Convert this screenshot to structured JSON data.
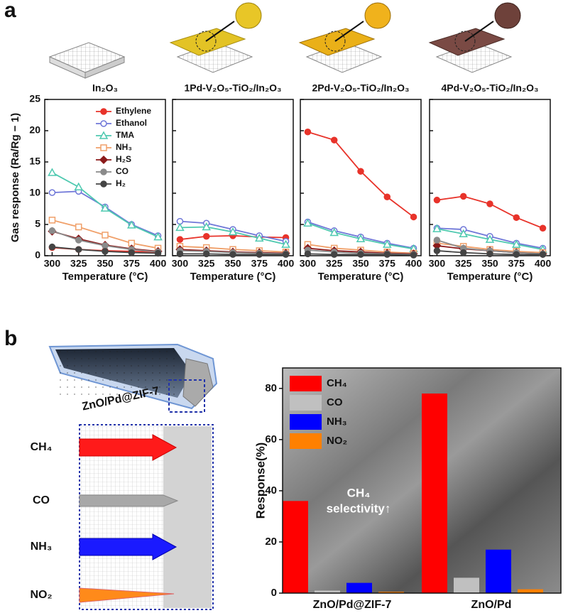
{
  "panels": {
    "a": "a",
    "b": "b"
  },
  "illustration": {
    "label": "ZnO/Pd@ZIF-7",
    "gases": [
      "CH₄",
      "CO",
      "NH₃",
      "NO₂"
    ]
  },
  "chart_data": [
    {
      "type": "line",
      "title": "In₂O₃",
      "ylabel": "Gas response (Ra/Rg − 1)",
      "xlabel": "Temperature (°C)",
      "x": [
        300,
        325,
        350,
        375,
        400
      ],
      "xlim": [
        293,
        407
      ],
      "xticks": [
        300,
        325,
        350,
        375,
        400
      ],
      "ylim": [
        0,
        25
      ],
      "yticks": [
        0,
        5,
        10,
        15,
        20,
        25
      ],
      "legend": "upper right",
      "series": [
        {
          "name": "Ethylene",
          "color": "#e8332a",
          "marker": "circle-filled",
          "values": [
            1.3,
            1.0,
            0.8,
            0.7,
            0.6
          ]
        },
        {
          "name": "Ethanol",
          "color": "#6f77d8",
          "marker": "circle-open",
          "values": [
            10.1,
            10.3,
            7.8,
            5.0,
            3.2
          ]
        },
        {
          "name": "TMA",
          "color": "#4fc9b0",
          "marker": "triangle-open",
          "values": [
            13.3,
            11.0,
            7.6,
            4.9,
            3.0
          ]
        },
        {
          "name": "NH₃",
          "color": "#f0a06a",
          "marker": "square-open",
          "values": [
            5.7,
            4.6,
            3.3,
            2.0,
            1.2
          ]
        },
        {
          "name": "H₂S",
          "color": "#8b1a1a",
          "marker": "diamond-filled",
          "values": [
            3.9,
            2.7,
            1.7,
            1.1,
            0.7
          ]
        },
        {
          "name": "CO",
          "color": "#8a8a8a",
          "marker": "circle-filled",
          "values": [
            4.0,
            2.5,
            1.6,
            1.0,
            0.6
          ]
        },
        {
          "name": "H₂",
          "color": "#444444",
          "marker": "circle-filled",
          "values": [
            1.4,
            1.0,
            0.7,
            0.5,
            0.4
          ]
        }
      ]
    },
    {
      "type": "line",
      "title": "1Pd-V₂O₅-TiO₂/In₂O₃",
      "xlabel": "Temperature (°C)",
      "x": [
        300,
        325,
        350,
        375,
        400
      ],
      "xlim": [
        293,
        407
      ],
      "xticks": [
        300,
        325,
        350,
        375,
        400
      ],
      "ylim": [
        0,
        25
      ],
      "yticks": [
        0,
        5,
        10,
        15,
        20,
        25
      ],
      "series": [
        {
          "name": "Ethylene",
          "color": "#e8332a",
          "marker": "circle-filled",
          "values": [
            2.6,
            3.1,
            3.2,
            3.0,
            2.9
          ]
        },
        {
          "name": "Ethanol",
          "color": "#6f77d8",
          "marker": "circle-open",
          "values": [
            5.5,
            5.2,
            4.2,
            3.2,
            2.3
          ]
        },
        {
          "name": "TMA",
          "color": "#4fc9b0",
          "marker": "triangle-open",
          "values": [
            4.5,
            4.6,
            3.8,
            2.8,
            1.8
          ]
        },
        {
          "name": "NH₃",
          "color": "#f0a06a",
          "marker": "square-open",
          "values": [
            1.5,
            1.3,
            1.0,
            0.8,
            0.6
          ]
        },
        {
          "name": "H₂S",
          "color": "#8b1a1a",
          "marker": "diamond-filled",
          "values": [
            1.0,
            0.8,
            0.6,
            0.5,
            0.4
          ]
        },
        {
          "name": "CO",
          "color": "#8a8a8a",
          "marker": "circle-filled",
          "values": [
            0.8,
            0.7,
            0.5,
            0.4,
            0.3
          ]
        },
        {
          "name": "H₂",
          "color": "#444444",
          "marker": "circle-filled",
          "values": [
            0.3,
            0.3,
            0.2,
            0.2,
            0.2
          ]
        }
      ]
    },
    {
      "type": "line",
      "title": "2Pd-V₂O₅-TiO₂/In₂O₃",
      "xlabel": "Temperature (°C)",
      "x": [
        300,
        325,
        350,
        375,
        400
      ],
      "xlim": [
        293,
        407
      ],
      "xticks": [
        300,
        325,
        350,
        375,
        400
      ],
      "ylim": [
        0,
        25
      ],
      "yticks": [
        0,
        5,
        10,
        15,
        20,
        25
      ],
      "series": [
        {
          "name": "Ethylene",
          "color": "#e8332a",
          "marker": "circle-filled",
          "values": [
            19.8,
            18.5,
            13.5,
            9.4,
            6.2
          ]
        },
        {
          "name": "Ethanol",
          "color": "#6f77d8",
          "marker": "circle-open",
          "values": [
            5.4,
            4.0,
            3.0,
            2.0,
            1.2
          ]
        },
        {
          "name": "TMA",
          "color": "#4fc9b0",
          "marker": "triangle-open",
          "values": [
            5.2,
            3.7,
            2.7,
            1.8,
            1.1
          ]
        },
        {
          "name": "NH₃",
          "color": "#f0a06a",
          "marker": "square-open",
          "values": [
            1.8,
            1.2,
            0.9,
            0.6,
            0.4
          ]
        },
        {
          "name": "H₂S",
          "color": "#8b1a1a",
          "marker": "diamond-filled",
          "values": [
            1.2,
            0.8,
            0.6,
            0.4,
            0.3
          ]
        },
        {
          "name": "CO",
          "color": "#8a8a8a",
          "marker": "circle-filled",
          "values": [
            0.9,
            0.6,
            0.4,
            0.3,
            0.2
          ]
        },
        {
          "name": "H₂",
          "color": "#444444",
          "marker": "circle-filled",
          "values": [
            0.3,
            0.2,
            0.2,
            0.2,
            0.1
          ]
        }
      ]
    },
    {
      "type": "line",
      "title": "4Pd-V₂O₅-TiO₂/In₂O₃",
      "xlabel": "Temperature (°C)",
      "x": [
        300,
        325,
        350,
        375,
        400
      ],
      "xlim": [
        293,
        407
      ],
      "xticks": [
        300,
        325,
        350,
        375,
        400
      ],
      "ylim": [
        0,
        25
      ],
      "yticks": [
        0,
        5,
        10,
        15,
        20,
        25
      ],
      "series": [
        {
          "name": "Ethylene",
          "color": "#e8332a",
          "marker": "circle-filled",
          "values": [
            8.9,
            9.5,
            8.3,
            6.1,
            4.4
          ]
        },
        {
          "name": "Ethanol",
          "color": "#6f77d8",
          "marker": "circle-open",
          "values": [
            4.4,
            4.2,
            3.1,
            2.0,
            1.2
          ]
        },
        {
          "name": "TMA",
          "color": "#4fc9b0",
          "marker": "triangle-open",
          "values": [
            4.3,
            3.5,
            2.6,
            1.8,
            1.0
          ]
        },
        {
          "name": "NH₃",
          "color": "#f0a06a",
          "marker": "square-open",
          "values": [
            2.0,
            1.5,
            1.0,
            0.7,
            0.5
          ]
        },
        {
          "name": "H₂S",
          "color": "#8b1a1a",
          "marker": "diamond-filled",
          "values": [
            1.6,
            1.1,
            0.8,
            0.5,
            0.3
          ]
        },
        {
          "name": "CO",
          "color": "#8a8a8a",
          "marker": "circle-filled",
          "values": [
            2.5,
            1.2,
            0.8,
            0.5,
            0.3
          ]
        },
        {
          "name": "H₂",
          "color": "#444444",
          "marker": "circle-filled",
          "values": [
            0.8,
            0.5,
            0.3,
            0.2,
            0.2
          ]
        }
      ]
    },
    {
      "type": "bar",
      "ylabel": "Response(%)",
      "categories": [
        "ZnO/Pd@ZIF-7",
        "ZnO/Pd"
      ],
      "ylim": [
        0,
        88
      ],
      "yticks": [
        0,
        20,
        40,
        60,
        80
      ],
      "legend": "upper left",
      "annotation": [
        "CH₄",
        "selectivity↑"
      ],
      "series": [
        {
          "name": "CH₄",
          "color": "#ff0000",
          "values": [
            36,
            78
          ]
        },
        {
          "name": "CO",
          "color": "#c0c0c0",
          "values": [
            1,
            6
          ]
        },
        {
          "name": "NH₃",
          "color": "#0000ff",
          "values": [
            4,
            17
          ]
        },
        {
          "name": "NO₂",
          "color": "#ff8000",
          "values": [
            0.5,
            1.5
          ]
        }
      ]
    }
  ]
}
